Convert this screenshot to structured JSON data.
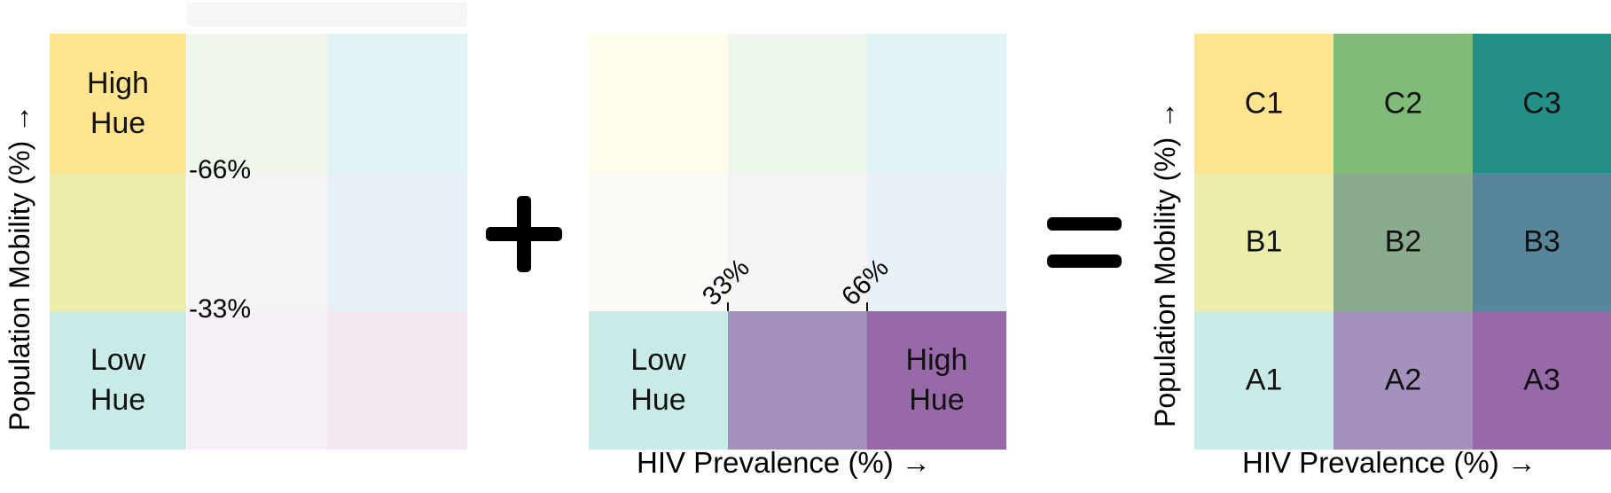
{
  "panel_mobility": {
    "y_axis_label": "Population Mobility (%) →",
    "top_label": "High\nHue",
    "bottom_label": "Low\nHue",
    "tick_high": "-66%",
    "tick_low": "-33%",
    "colors": {
      "high": "#fde48e",
      "mid": "#ecedab",
      "low": "#c9ebe7",
      "faint_rows": [
        [
          "#eff7ec",
          "#e0f4f5"
        ],
        [
          "#f4f4f4",
          "#e8f1f7"
        ],
        [
          "#f7eff7",
          "#f3e7f2"
        ]
      ]
    }
  },
  "panel_prevalence": {
    "x_axis_label": "HIV Prevalence (%) →",
    "left_label": "Low\nHue",
    "right_label": "High\nHue",
    "tick_low": "33%",
    "tick_high": "66%",
    "colors": {
      "low": "#c9ebe7",
      "mid": "#a591bd",
      "high": "#9769a8",
      "faint_rows": [
        [
          "#fffcec",
          "#eef7ec",
          "#e0f4f5"
        ],
        [
          "#fafaf6",
          "#f4f4f4",
          "#e8f1f7"
        ]
      ]
    }
  },
  "panel_combined": {
    "y_axis_label": "Population Mobility (%) →",
    "x_axis_label": "HIV Prevalence (%) →",
    "rows": [
      [
        {
          "label": "C1",
          "color": "#fde48e"
        },
        {
          "label": "C2",
          "color": "#80bb79"
        },
        {
          "label": "C3",
          "color": "#248f86"
        }
      ],
      [
        {
          "label": "B1",
          "color": "#ecedab"
        },
        {
          "label": "B2",
          "color": "#8aab8e"
        },
        {
          "label": "B3",
          "color": "#57869b"
        }
      ],
      [
        {
          "label": "A1",
          "color": "#c9ebe7"
        },
        {
          "label": "A2",
          "color": "#a591bd"
        },
        {
          "label": "A3",
          "color": "#9769a8"
        }
      ]
    ]
  },
  "operators": {
    "plus_icon": "plus-icon",
    "equals_icon": "equals-icon"
  }
}
